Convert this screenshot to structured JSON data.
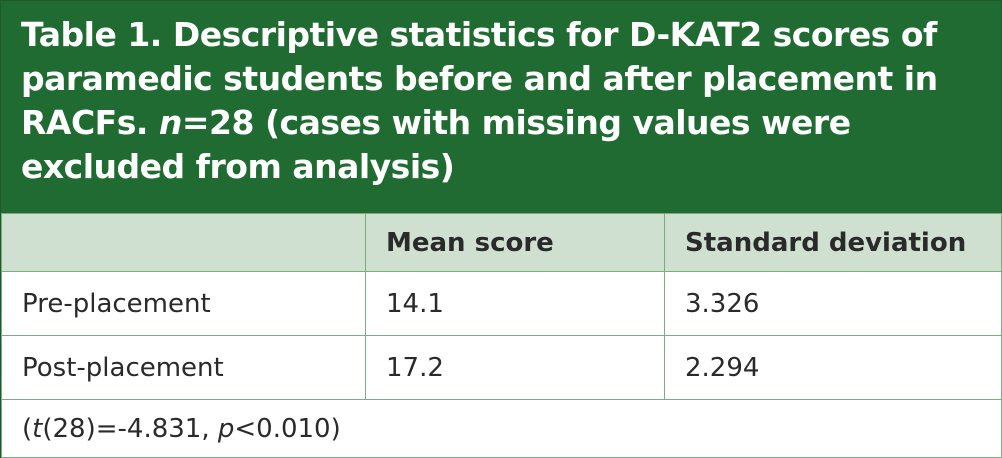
{
  "title": {
    "part1": "Table 1. Descriptive statistics for D-KAT2 scores of paramedic students before and after placement in RACFs. ",
    "n_italic": "n",
    "part2": "=28 (cases with missing values were excluded from analysis)"
  },
  "table": {
    "headers": [
      "",
      "Mean score",
      "Standard deviation"
    ],
    "rows": [
      {
        "label": "Pre-placement",
        "mean": "14.1",
        "sd": "3.326"
      },
      {
        "label": "Post-placement",
        "mean": "17.2",
        "sd": "2.294"
      }
    ],
    "footnote": {
      "open": "(",
      "t_italic": "t",
      "mid": "(28)=-4.831, ",
      "p_italic": "p",
      "end": "<0.010)"
    }
  },
  "colors": {
    "title_background": "#1f6b32",
    "header_background": "#cfe0d0",
    "border": "#7cab83"
  }
}
